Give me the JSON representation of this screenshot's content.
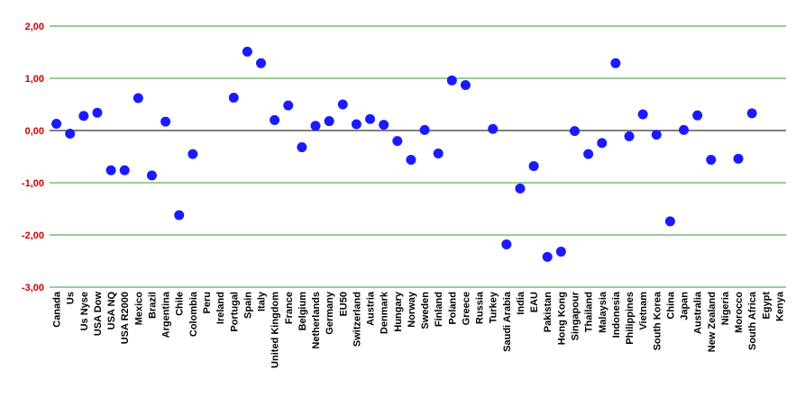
{
  "chart_data": {
    "type": "scatter",
    "title": "",
    "xlabel": "",
    "ylabel": "",
    "ylim": [
      -3,
      2
    ],
    "yticks": [
      -3,
      -2,
      -1,
      0,
      1,
      2
    ],
    "ytick_labels": [
      "-3,00",
      "-2,00",
      "-1,00",
      "0,00",
      "1,00",
      "2,00"
    ],
    "grid": true,
    "legend": "none",
    "colors": {
      "point": "#1a1aff",
      "grid": "#3a9a3a",
      "zero_line": "#000000",
      "ytick": "#cc0000"
    },
    "categories": [
      "Canada",
      "Us",
      "Us Nyse",
      "USA Dow",
      "USA NQ",
      "USA R2000",
      "Mexico",
      "Brazil",
      "Argentina",
      "Chile",
      "Colombia",
      "Peru",
      "Ireland",
      "Portugal",
      "Spain",
      "Italy",
      "United Kingdom",
      "France",
      "Belgium",
      "Netherlands",
      "Germany",
      "EU50",
      "Switzerland",
      "Austria",
      "Denmark",
      "Hungary",
      "Norway",
      "Sweden",
      "Finland",
      "Poland",
      "Greece",
      "Russia",
      "Turkey",
      "Saudi Arabia",
      "India",
      "EAU",
      "Pakistan",
      "Hong Kong",
      "Singapour",
      "Thailand",
      "Malaysia",
      "Indonesia",
      "Philippines",
      "Vietnam",
      "South Korea",
      "China",
      "Japan",
      "Australia",
      "New Zealand",
      "Nigeria",
      "Morocco",
      "South Africa",
      "Egypt",
      "Kenya"
    ],
    "values": [
      0.13,
      -0.06,
      0.28,
      0.34,
      -0.76,
      -0.76,
      0.62,
      -0.86,
      0.17,
      -1.62,
      -0.45,
      null,
      null,
      0.63,
      1.51,
      1.29,
      0.2,
      0.48,
      -0.32,
      0.09,
      0.18,
      0.5,
      0.12,
      0.22,
      0.11,
      -0.2,
      -0.56,
      0.01,
      -0.44,
      0.96,
      0.87,
      null,
      0.03,
      -2.18,
      -1.11,
      -0.68,
      -2.42,
      -2.32,
      -0.01,
      -0.45,
      -0.24,
      1.29,
      -0.11,
      0.31,
      -0.08,
      -1.74,
      0.01,
      0.29,
      -0.56,
      null,
      -0.54,
      0.33,
      null,
      null
    ]
  }
}
